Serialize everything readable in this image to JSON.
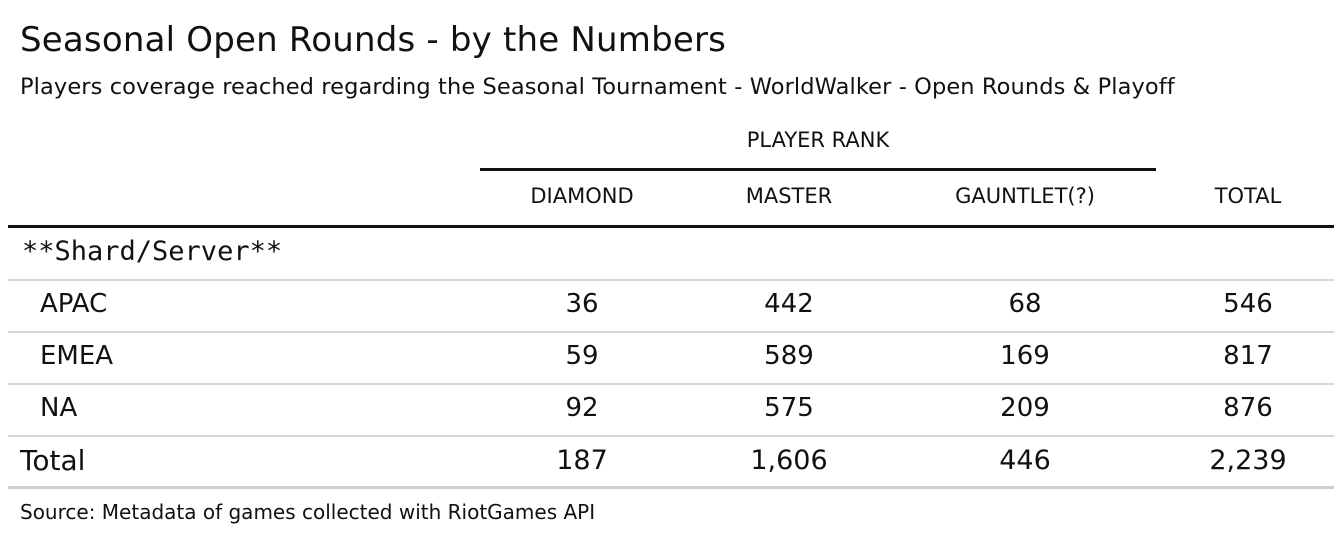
{
  "header": {
    "title": "Seasonal Open Rounds - by the Numbers",
    "subtitle": "Players coverage reached regarding the Seasonal Tournament - WorldWalker - Open Rounds & Playoff"
  },
  "table": {
    "spanner": "PLAYER RANK",
    "columns": [
      "DIAMOND",
      "MASTER",
      "GAUNTLET(?)",
      "TOTAL"
    ],
    "group_label": "**Shard/Server**",
    "rows": [
      {
        "label": "APAC",
        "values": [
          "36",
          "442",
          "68",
          "546"
        ]
      },
      {
        "label": "EMEA",
        "values": [
          "59",
          "589",
          "169",
          "817"
        ]
      },
      {
        "label": "NA",
        "values": [
          "92",
          "575",
          "209",
          "876"
        ]
      }
    ],
    "total_row": {
      "label": "Total",
      "values": [
        "187",
        "1,606",
        "446",
        "2,239"
      ]
    }
  },
  "footer": {
    "source": "Source: Metadata of games collected with RiotGames API"
  }
}
